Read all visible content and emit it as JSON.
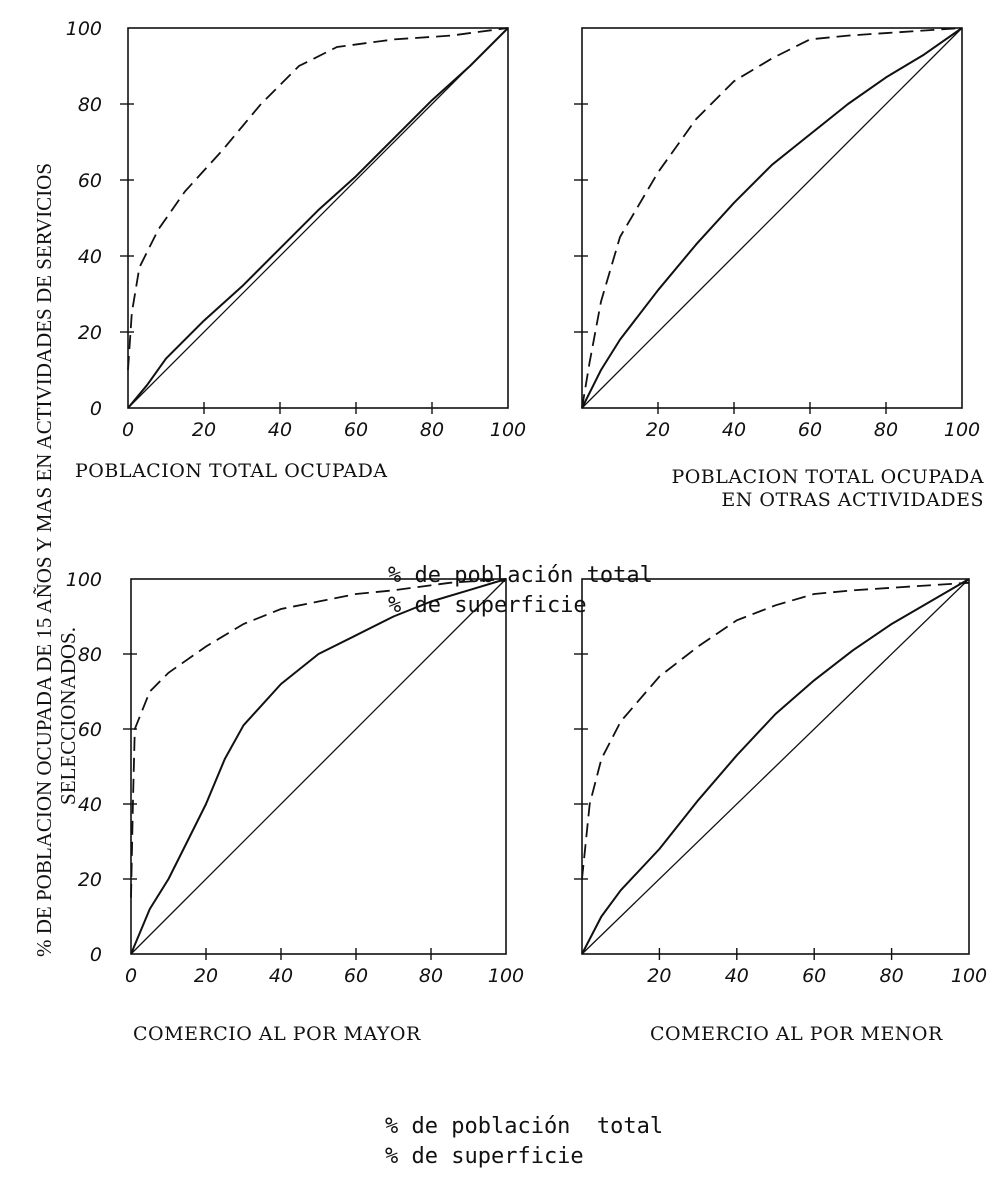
{
  "figure": {
    "y_axis_title_line1": "% DE POBLACION OCUPADA DE 15 AÑOS Y MAS EN ACTIVIDADES DE SERVICIOS",
    "y_axis_title_line2": "SELECCIONADOS.",
    "x_note_top": [
      "% de población total",
      "% de superficie"
    ],
    "x_note_bottom": [
      "% de población  total",
      "% de superficie"
    ]
  },
  "chart_data": [
    {
      "type": "line",
      "caption": [
        "POBLACION TOTAL OCUPADA"
      ],
      "xlim": [
        0,
        100
      ],
      "ylim": [
        0,
        100
      ],
      "x_ticks": [
        "0",
        "20",
        "40",
        "60",
        "80",
        "100"
      ],
      "y_ticks": [
        "0",
        "20",
        "40",
        "60",
        "80",
        "100"
      ],
      "series": [
        {
          "style": "diagonal",
          "points": [
            [
              0,
              0
            ],
            [
              100,
              100
            ]
          ]
        },
        {
          "style": "solid",
          "points": [
            [
              0,
              0
            ],
            [
              5,
              6
            ],
            [
              10,
              13
            ],
            [
              20,
              23
            ],
            [
              30,
              32
            ],
            [
              40,
              42
            ],
            [
              50,
              52
            ],
            [
              60,
              61
            ],
            [
              70,
              71
            ],
            [
              80,
              81
            ],
            [
              90,
              90
            ],
            [
              100,
              100
            ]
          ]
        },
        {
          "style": "dashed",
          "points": [
            [
              0,
              10
            ],
            [
              1,
              25
            ],
            [
              3,
              37
            ],
            [
              8,
              47
            ],
            [
              15,
              57
            ],
            [
              25,
              68
            ],
            [
              35,
              80
            ],
            [
              45,
              90
            ],
            [
              55,
              95
            ],
            [
              70,
              97
            ],
            [
              85,
              98
            ],
            [
              100,
              100
            ]
          ]
        }
      ]
    },
    {
      "type": "line",
      "caption": [
        "POBLACION TOTAL OCUPADA",
        "EN OTRAS ACTIVIDADES"
      ],
      "xlim": [
        0,
        100
      ],
      "ylim": [
        0,
        100
      ],
      "x_ticks": [
        "20",
        "40",
        "60",
        "80",
        "100"
      ],
      "y_ticks": [],
      "series": [
        {
          "style": "diagonal",
          "points": [
            [
              0,
              0
            ],
            [
              100,
              100
            ]
          ]
        },
        {
          "style": "solid",
          "points": [
            [
              0,
              0
            ],
            [
              5,
              10
            ],
            [
              10,
              18
            ],
            [
              20,
              31
            ],
            [
              30,
              43
            ],
            [
              40,
              54
            ],
            [
              50,
              64
            ],
            [
              60,
              72
            ],
            [
              70,
              80
            ],
            [
              80,
              87
            ],
            [
              90,
              93
            ],
            [
              100,
              100
            ]
          ]
        },
        {
          "style": "dashed",
          "points": [
            [
              0,
              0
            ],
            [
              2,
              12
            ],
            [
              5,
              28
            ],
            [
              10,
              45
            ],
            [
              20,
              62
            ],
            [
              30,
              76
            ],
            [
              40,
              86
            ],
            [
              50,
              92
            ],
            [
              60,
              97
            ],
            [
              70,
              98
            ],
            [
              85,
              99
            ],
            [
              100,
              100
            ]
          ]
        }
      ]
    },
    {
      "type": "line",
      "caption": [
        "COMERCIO AL POR MAYOR"
      ],
      "xlim": [
        0,
        100
      ],
      "ylim": [
        0,
        100
      ],
      "x_ticks": [
        "0",
        "20",
        "40",
        "60",
        "80",
        "100"
      ],
      "y_ticks": [
        "0",
        "20",
        "40",
        "60",
        "80",
        "100"
      ],
      "series": [
        {
          "style": "diagonal",
          "points": [
            [
              0,
              0
            ],
            [
              100,
              100
            ]
          ]
        },
        {
          "style": "solid",
          "points": [
            [
              0,
              0
            ],
            [
              5,
              12
            ],
            [
              10,
              20
            ],
            [
              15,
              30
            ],
            [
              20,
              40
            ],
            [
              25,
              52
            ],
            [
              30,
              61
            ],
            [
              40,
              72
            ],
            [
              50,
              80
            ],
            [
              60,
              85
            ],
            [
              70,
              90
            ],
            [
              80,
              94
            ],
            [
              90,
              97
            ],
            [
              100,
              100
            ]
          ]
        },
        {
          "style": "dashed",
          "points": [
            [
              0,
              15
            ],
            [
              0.5,
              40
            ],
            [
              1,
              60
            ],
            [
              5,
              70
            ],
            [
              10,
              75
            ],
            [
              20,
              82
            ],
            [
              30,
              88
            ],
            [
              40,
              92
            ],
            [
              50,
              94
            ],
            [
              60,
              96
            ],
            [
              70,
              97
            ],
            [
              85,
              99
            ],
            [
              100,
              100
            ]
          ]
        }
      ]
    },
    {
      "type": "line",
      "caption": [
        "COMERCIO AL POR MENOR"
      ],
      "xlim": [
        0,
        100
      ],
      "ylim": [
        0,
        100
      ],
      "x_ticks": [
        "20",
        "40",
        "60",
        "80",
        "100"
      ],
      "y_ticks": [],
      "series": [
        {
          "style": "diagonal",
          "points": [
            [
              0,
              0
            ],
            [
              100,
              100
            ]
          ]
        },
        {
          "style": "solid",
          "points": [
            [
              0,
              0
            ],
            [
              5,
              10
            ],
            [
              10,
              17
            ],
            [
              20,
              28
            ],
            [
              30,
              41
            ],
            [
              40,
              53
            ],
            [
              50,
              64
            ],
            [
              60,
              73
            ],
            [
              70,
              81
            ],
            [
              80,
              88
            ],
            [
              90,
              94
            ],
            [
              100,
              100
            ]
          ]
        },
        {
          "style": "dashed",
          "points": [
            [
              0,
              20
            ],
            [
              2,
              40
            ],
            [
              5,
              52
            ],
            [
              10,
              62
            ],
            [
              20,
              74
            ],
            [
              30,
              82
            ],
            [
              40,
              89
            ],
            [
              50,
              93
            ],
            [
              60,
              96
            ],
            [
              70,
              97
            ],
            [
              85,
              98
            ],
            [
              100,
              99
            ]
          ]
        }
      ]
    }
  ]
}
